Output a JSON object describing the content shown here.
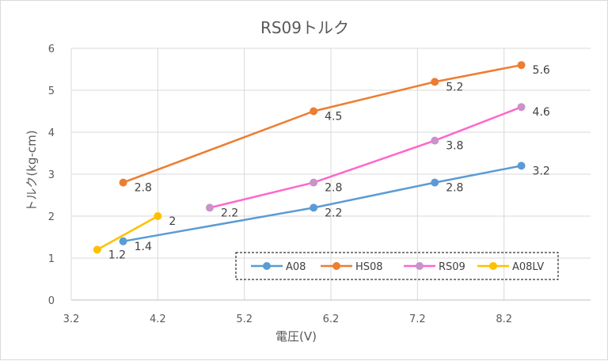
{
  "chart_data": {
    "type": "line",
    "title": "RS09トルク",
    "xlabel": "電圧(V)",
    "ylabel": "トルク(kg-cm)",
    "xlim": [
      3.2,
      9.2
    ],
    "ylim": [
      0,
      6
    ],
    "xticks": [
      "3.2",
      "4.2",
      "5.2",
      "6.2",
      "7.2",
      "8.2"
    ],
    "yticks": [
      "0",
      "1",
      "2",
      "3",
      "4",
      "5",
      "6"
    ],
    "grid": true,
    "legend_position": "bottom-right",
    "series": [
      {
        "name": "A08",
        "color": "#5b9bd5",
        "points": [
          [
            3.8,
            1.4
          ],
          [
            6.0,
            2.2
          ],
          [
            7.4,
            2.8
          ],
          [
            8.4,
            3.2
          ]
        ],
        "labels": [
          "1.4",
          "2.2",
          "2.8",
          "3.2"
        ]
      },
      {
        "name": "HS08",
        "color": "#ed7d31",
        "points": [
          [
            3.8,
            2.8
          ],
          [
            6.0,
            4.5
          ],
          [
            7.4,
            5.2
          ],
          [
            8.4,
            5.6
          ]
        ],
        "labels": [
          "2.8",
          "4.5",
          "5.2",
          "5.6"
        ]
      },
      {
        "name": "RS09",
        "color": "#ff66cc",
        "marker_color": "#c993c9",
        "points": [
          [
            4.8,
            2.2
          ],
          [
            6.0,
            2.8
          ],
          [
            7.4,
            3.8
          ],
          [
            8.4,
            4.6
          ]
        ],
        "labels": [
          "2.2",
          "2.8",
          "3.8",
          "4.6"
        ]
      },
      {
        "name": "A08LV",
        "color": "#ffc000",
        "points": [
          [
            3.5,
            1.2
          ],
          [
            4.2,
            2.0
          ]
        ],
        "labels": [
          "1.2",
          "2"
        ]
      }
    ]
  }
}
